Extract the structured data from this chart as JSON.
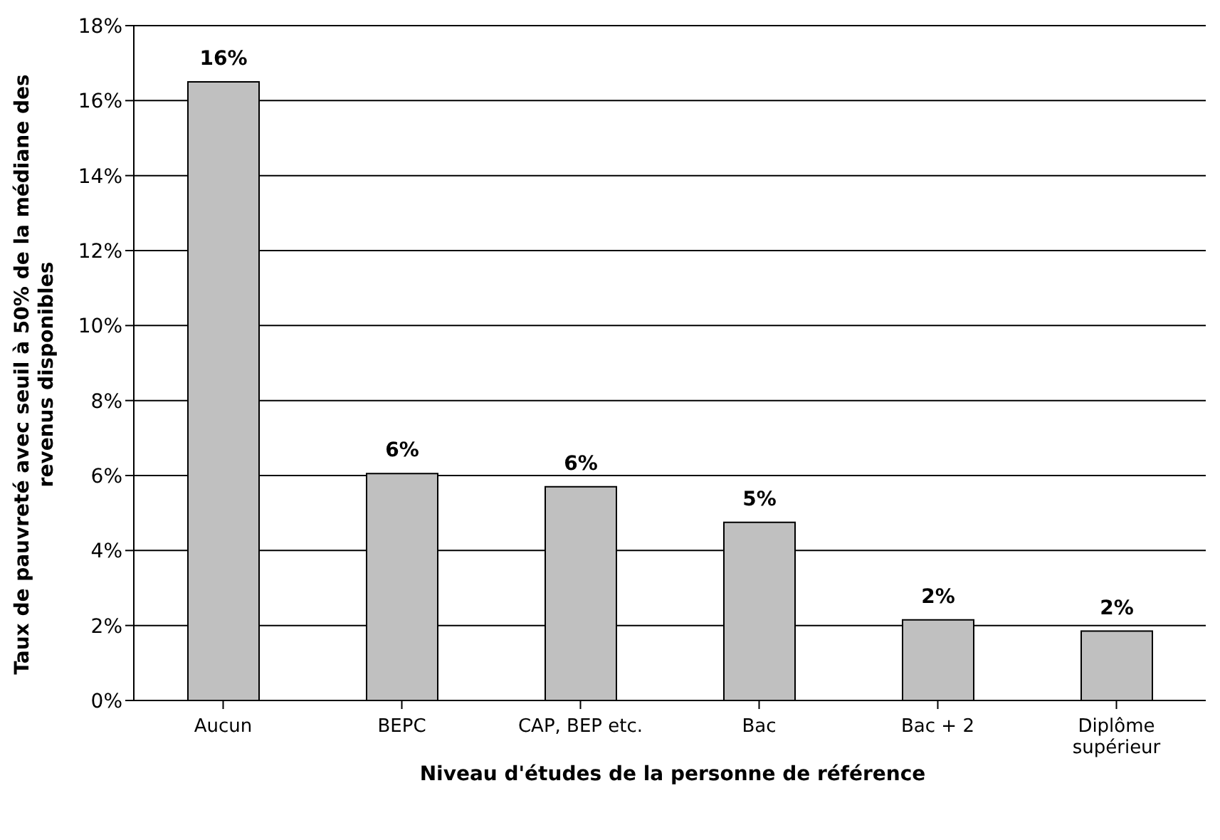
{
  "chart_data": {
    "type": "bar",
    "xlabel": "Niveau d'études de la personne de référence",
    "ylabel": "Taux de pauvreté avec seuil à 50% de la médiane des revenus disponibles",
    "categories": [
      "Aucun",
      "BEPC",
      "CAP, BEP etc.",
      "Bac",
      "Bac + 2",
      "Diplôme supérieur"
    ],
    "values": [
      16.5,
      6.05,
      5.7,
      4.75,
      2.15,
      1.85
    ],
    "value_labels": [
      "16%",
      "6%",
      "6%",
      "5%",
      "2%",
      "2%"
    ],
    "color": "#c0c0c0",
    "ylim": [
      0,
      18
    ],
    "yticks": [
      {
        "value": 0,
        "label": "0%"
      },
      {
        "value": 2,
        "label": "2%"
      },
      {
        "value": 4,
        "label": "4%"
      },
      {
        "value": 6,
        "label": "6%"
      },
      {
        "value": 8,
        "label": "8%"
      },
      {
        "value": 10,
        "label": "10%"
      },
      {
        "value": 12,
        "label": "12%"
      },
      {
        "value": 14,
        "label": "14%"
      },
      {
        "value": 16,
        "label": "16%"
      },
      {
        "value": 18,
        "label": "18%"
      }
    ],
    "grid": "y"
  }
}
